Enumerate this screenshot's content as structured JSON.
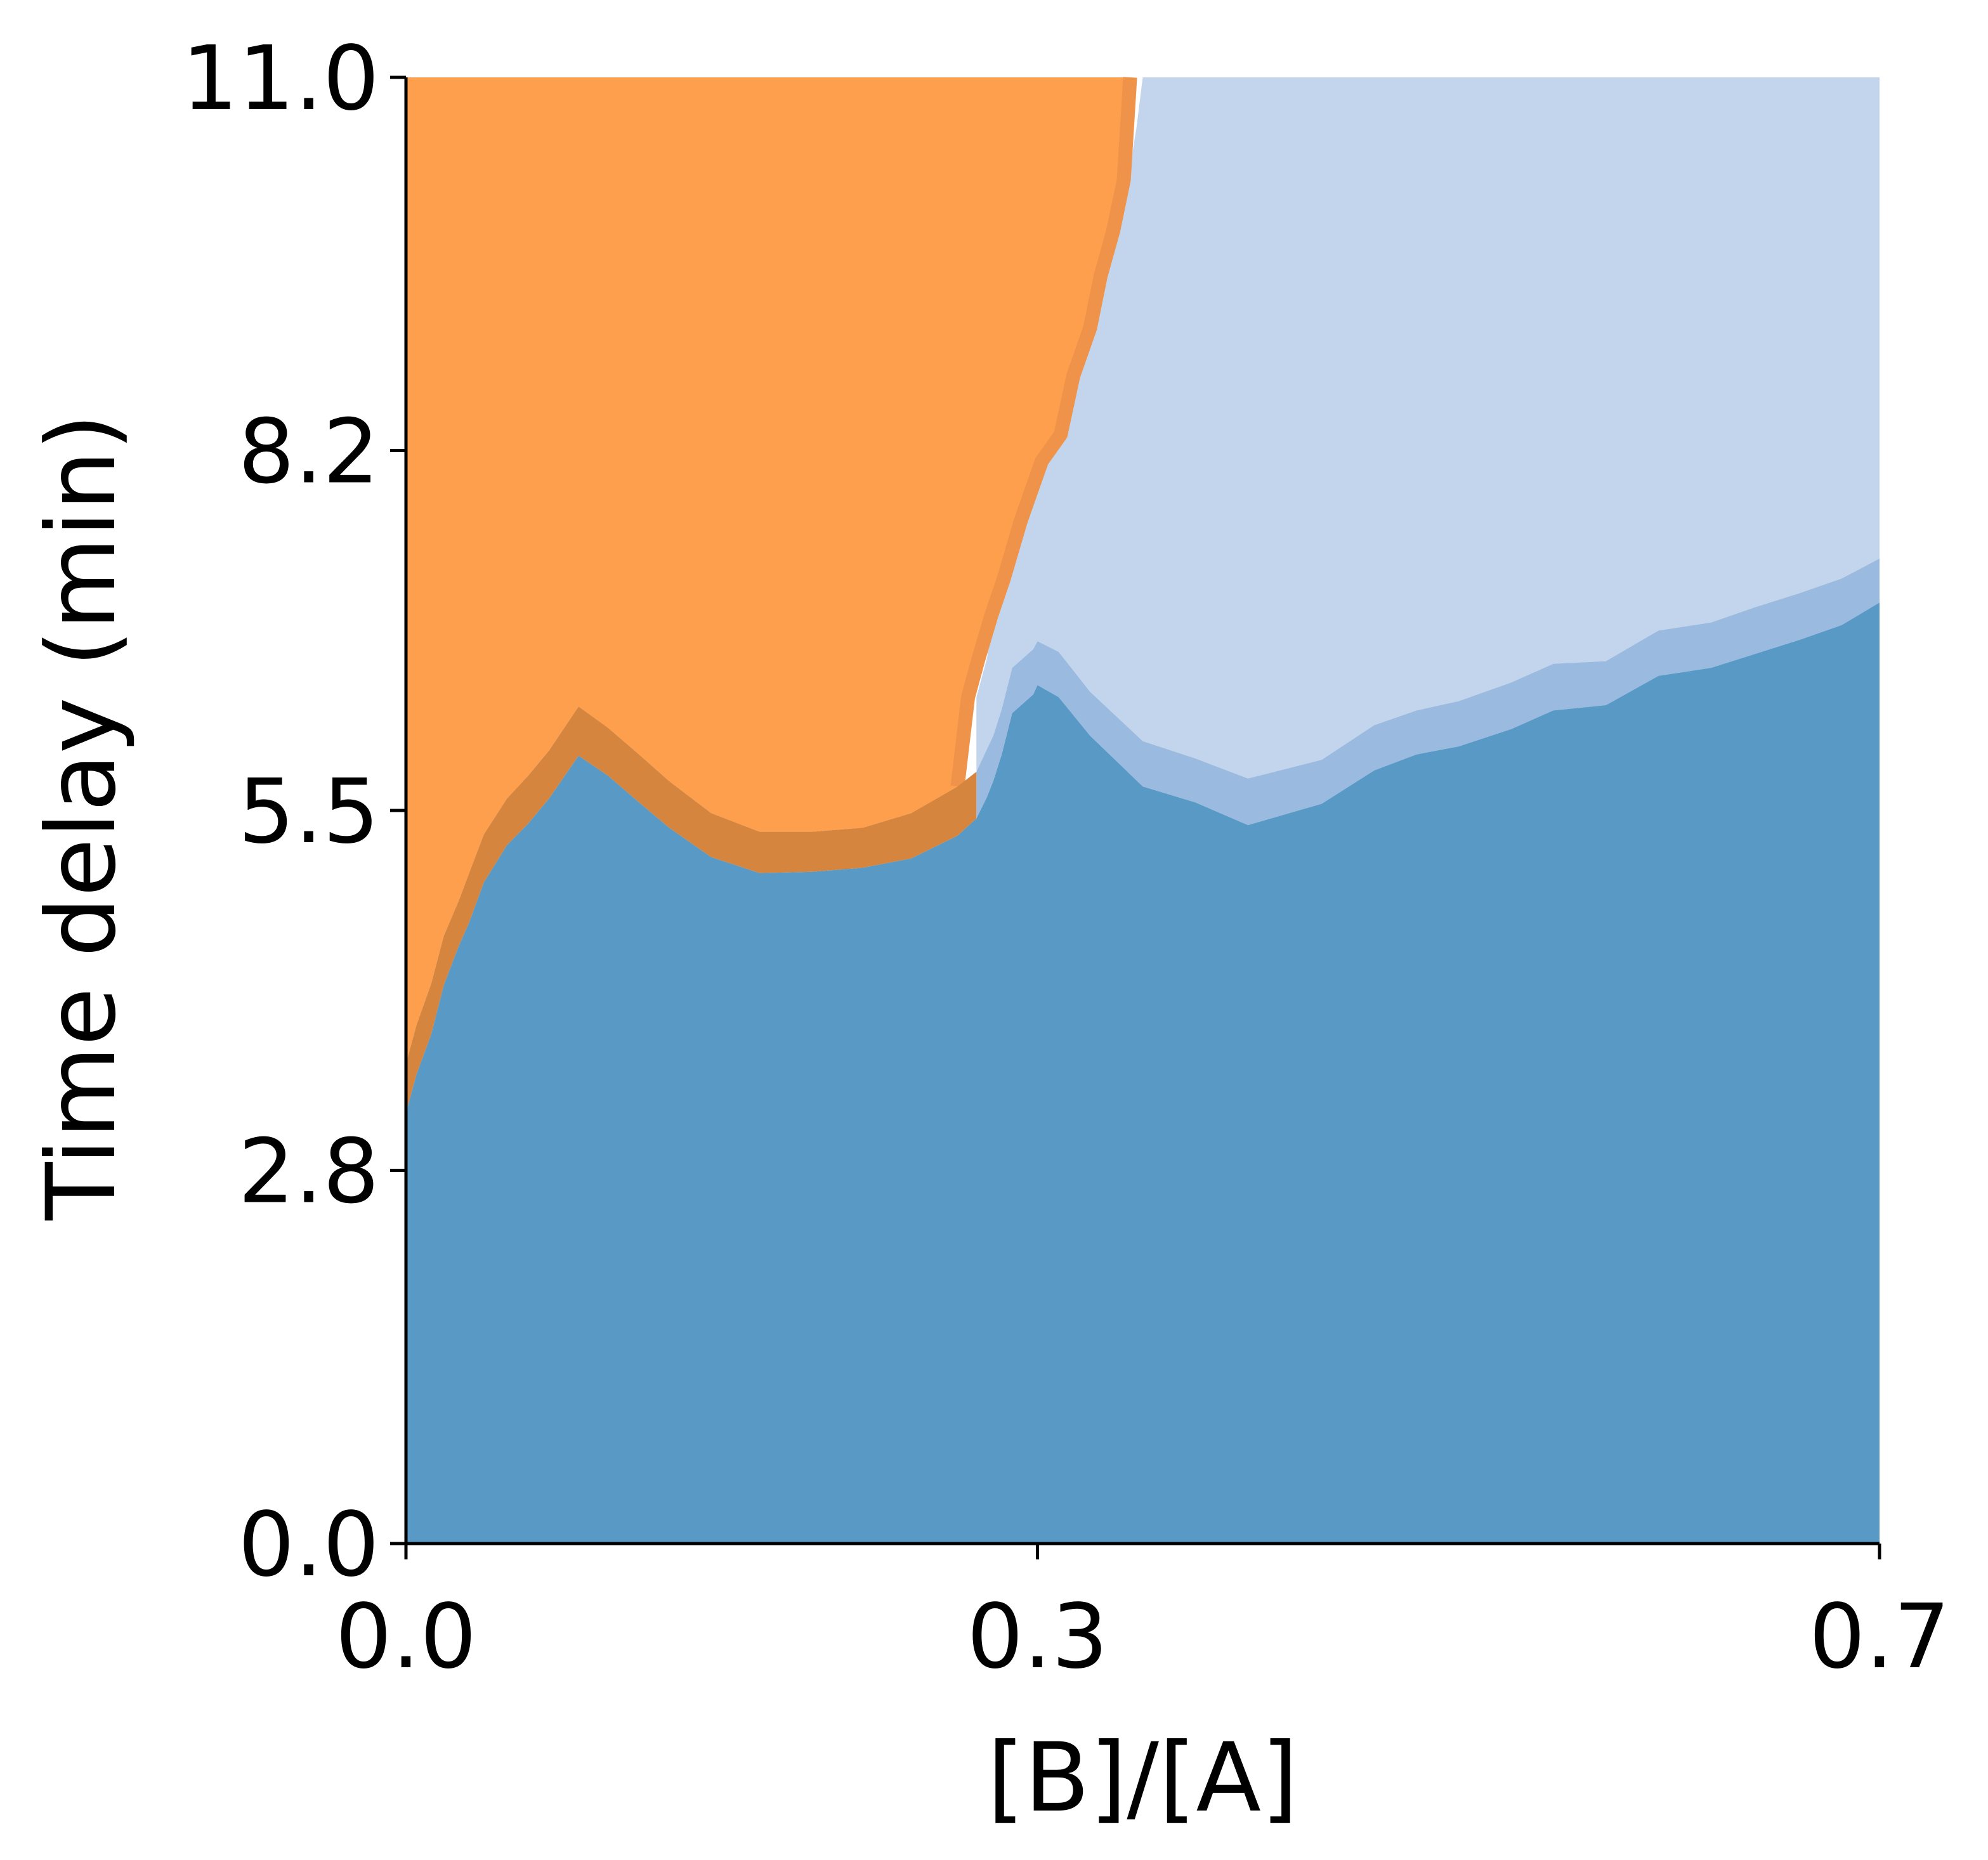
{
  "chart_data": {
    "type": "area",
    "title": "",
    "xlabel": "[B]/[A]",
    "ylabel": "Time delay (min)",
    "xlim": [
      0.0,
      0.7
    ],
    "ylim": [
      0.0,
      11.0
    ],
    "xticks": [
      0.0,
      0.3,
      0.7
    ],
    "xtick_labels": [
      "0.0",
      "0.3",
      "0.7"
    ],
    "yticks": [
      0.0,
      2.8,
      5.5,
      8.2,
      11.0
    ],
    "ytick_labels": [
      "0.0",
      "2.8",
      "5.5",
      "8.2",
      "11.0"
    ],
    "grid": false,
    "legend": "none",
    "colors": {
      "orange": "#fd9f4c",
      "orange_band": "#d5853e",
      "orange_edge": "#ee9349",
      "light_blue": "#c3d5ec",
      "light_blue_band": "#9abadf",
      "dark_blue": "#5899c5"
    },
    "regions": {
      "dark_blue": {
        "x": [
          0.0,
          0.005,
          0.012,
          0.018,
          0.025,
          0.03,
          0.037,
          0.048,
          0.058,
          0.068,
          0.082,
          0.096,
          0.11,
          0.125,
          0.145,
          0.168,
          0.193,
          0.217,
          0.24,
          0.262,
          0.271,
          0.276,
          0.279,
          0.283,
          0.288,
          0.298,
          0.3,
          0.31,
          0.325,
          0.35,
          0.375,
          0.4,
          0.435,
          0.46,
          0.48,
          0.5,
          0.525,
          0.545,
          0.57,
          0.595,
          0.62,
          0.64,
          0.662,
          0.682,
          0.7
        ],
        "y_top": [
          3.23,
          3.52,
          3.82,
          4.19,
          4.48,
          4.66,
          4.96,
          5.24,
          5.4,
          5.59,
          5.91,
          5.76,
          5.57,
          5.37,
          5.15,
          5.03,
          5.04,
          5.07,
          5.14,
          5.31,
          5.44,
          5.6,
          5.72,
          5.92,
          6.23,
          6.37,
          6.44,
          6.35,
          6.06,
          5.68,
          5.56,
          5.39,
          5.55,
          5.8,
          5.92,
          5.98,
          6.11,
          6.25,
          6.29,
          6.51,
          6.57,
          6.67,
          6.78,
          6.89,
          7.06
        ]
      },
      "orange_band": {
        "x": [
          0.0,
          0.005,
          0.012,
          0.018,
          0.025,
          0.03,
          0.037,
          0.048,
          0.058,
          0.068,
          0.082,
          0.096,
          0.11,
          0.125,
          0.145,
          0.168,
          0.193,
          0.217,
          0.24,
          0.262,
          0.271
        ],
        "y_top": [
          3.6,
          3.89,
          4.2,
          4.56,
          4.82,
          5.03,
          5.32,
          5.59,
          5.76,
          5.95,
          6.28,
          6.12,
          5.93,
          5.72,
          5.48,
          5.34,
          5.34,
          5.37,
          5.48,
          5.68,
          5.79
        ]
      },
      "light_blue_band": {
        "x": [
          0.271,
          0.276,
          0.279,
          0.283,
          0.288,
          0.298,
          0.3,
          0.31,
          0.325,
          0.35,
          0.375,
          0.4,
          0.435,
          0.46,
          0.48,
          0.5,
          0.525,
          0.545,
          0.57,
          0.595,
          0.62,
          0.64,
          0.662,
          0.682,
          0.7
        ],
        "y_top": [
          5.79,
          5.96,
          6.06,
          6.26,
          6.57,
          6.71,
          6.77,
          6.69,
          6.39,
          6.02,
          5.89,
          5.74,
          5.88,
          6.14,
          6.25,
          6.32,
          6.46,
          6.6,
          6.62,
          6.85,
          6.91,
          7.02,
          7.13,
          7.24,
          7.39
        ]
      },
      "light_blue": {
        "y_top": 11.0,
        "left_boundary": {
          "x": [
            0.271,
            0.276,
            0.279,
            0.283,
            0.288,
            0.296,
            0.306,
            0.316,
            0.322,
            0.329,
            0.335,
            0.343,
            0.347,
            0.35
          ],
          "y": [
            6.35,
            6.64,
            6.96,
            7.24,
            7.67,
            8.12,
            8.32,
            8.76,
            9.12,
            9.51,
            9.85,
            10.23,
            10.62,
            11.0
          ]
        }
      },
      "orange": {
        "y_top": 11.0,
        "right_boundary": {
          "x": [
            0.262,
            0.267,
            0.272,
            0.278,
            0.284,
            0.292,
            0.302,
            0.311,
            0.317,
            0.325,
            0.33,
            0.336,
            0.341,
            0.344
          ],
          "y": [
            5.68,
            6.35,
            6.64,
            6.96,
            7.24,
            7.67,
            8.12,
            8.32,
            8.76,
            9.12,
            9.51,
            9.85,
            10.23,
            11.0
          ]
        }
      }
    }
  }
}
